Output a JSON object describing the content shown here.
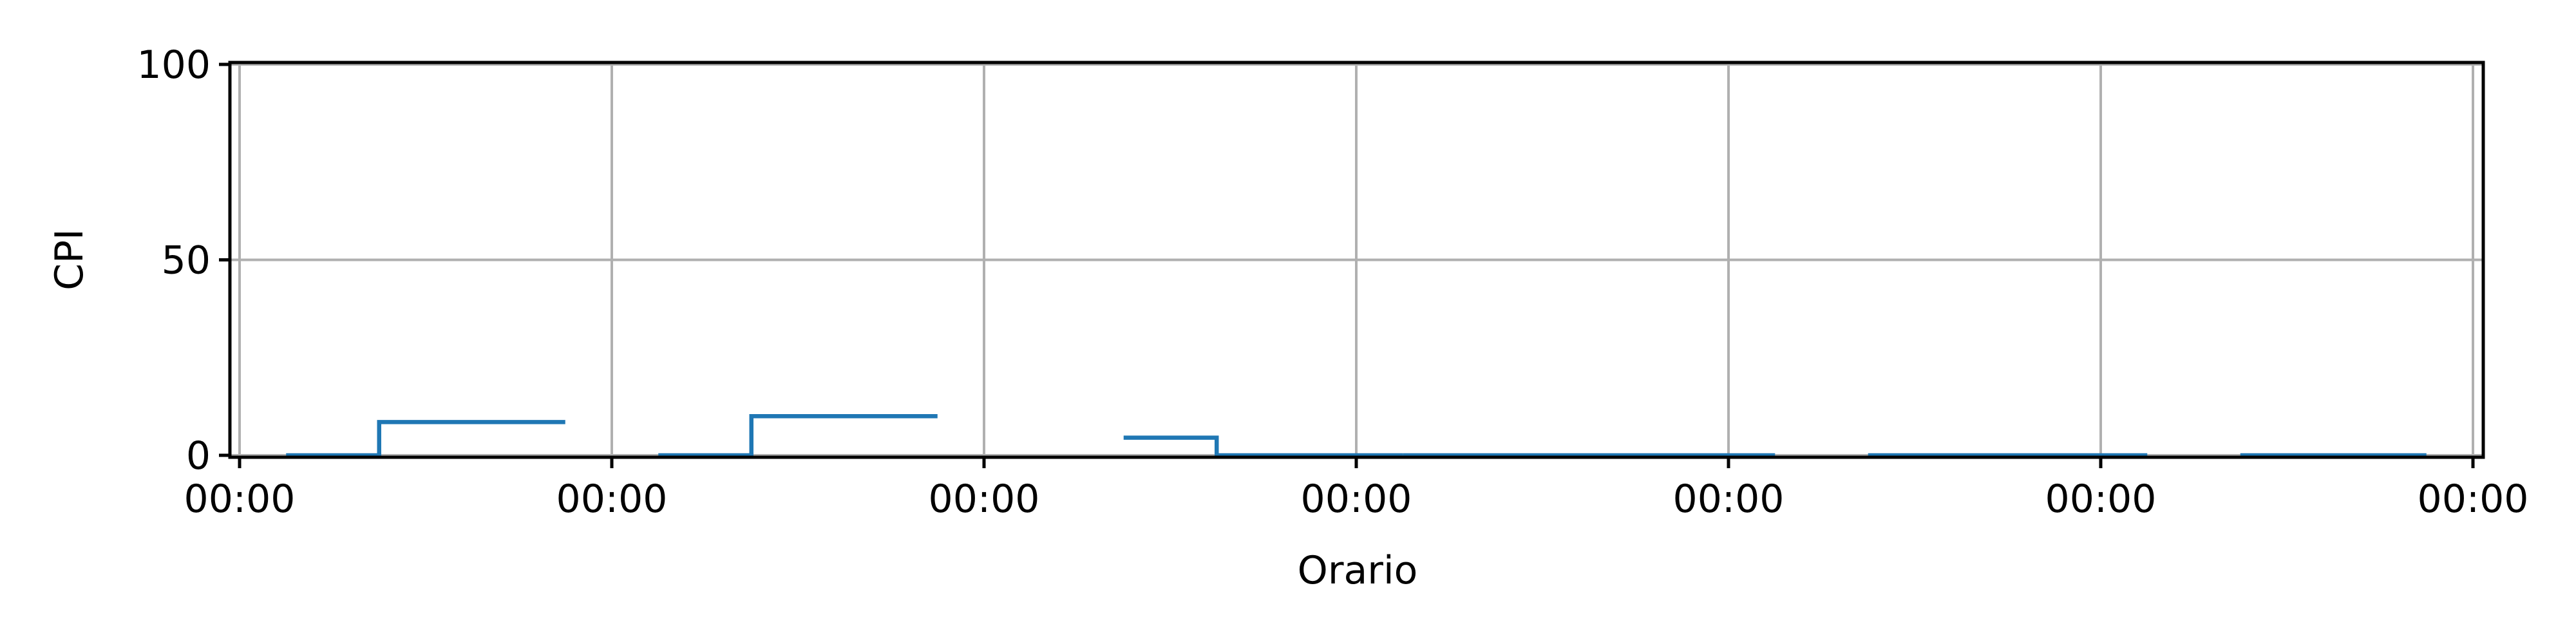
{
  "chart_data": {
    "type": "line",
    "title": "",
    "xlabel": "Orario",
    "ylabel": "CPI",
    "x_tick_labels": [
      "00:00",
      "00:00",
      "00:00",
      "00:00",
      "00:00",
      "00:00",
      "00:00"
    ],
    "y_ticks": [
      0,
      50,
      100
    ],
    "ylim": [
      0,
      100
    ],
    "xlim": [
      0,
      6
    ],
    "grid": true,
    "line_style": "steps-mid",
    "series": [
      {
        "color": "#1f77b4",
        "segments": [
          {
            "x": [
              0.25,
              0.5,
              0.75
            ],
            "y": [
              0,
              8.5,
              8.5
            ]
          },
          {
            "x": [
              1.25,
              1.5,
              1.75
            ],
            "y": [
              0,
              10,
              10
            ]
          },
          {
            "x": [
              2.5,
              2.75,
              3.0
            ],
            "y": [
              4.5,
              0,
              0
            ]
          },
          {
            "x": [
              3.25,
              3.5,
              3.75,
              4.0
            ],
            "y": [
              0,
              0,
              0,
              0
            ]
          },
          {
            "x": [
              4.5,
              4.75,
              5.0
            ],
            "y": [
              0,
              0,
              0
            ]
          },
          {
            "x": [
              5.5,
              5.75
            ],
            "y": [
              0,
              0
            ]
          }
        ]
      }
    ]
  }
}
